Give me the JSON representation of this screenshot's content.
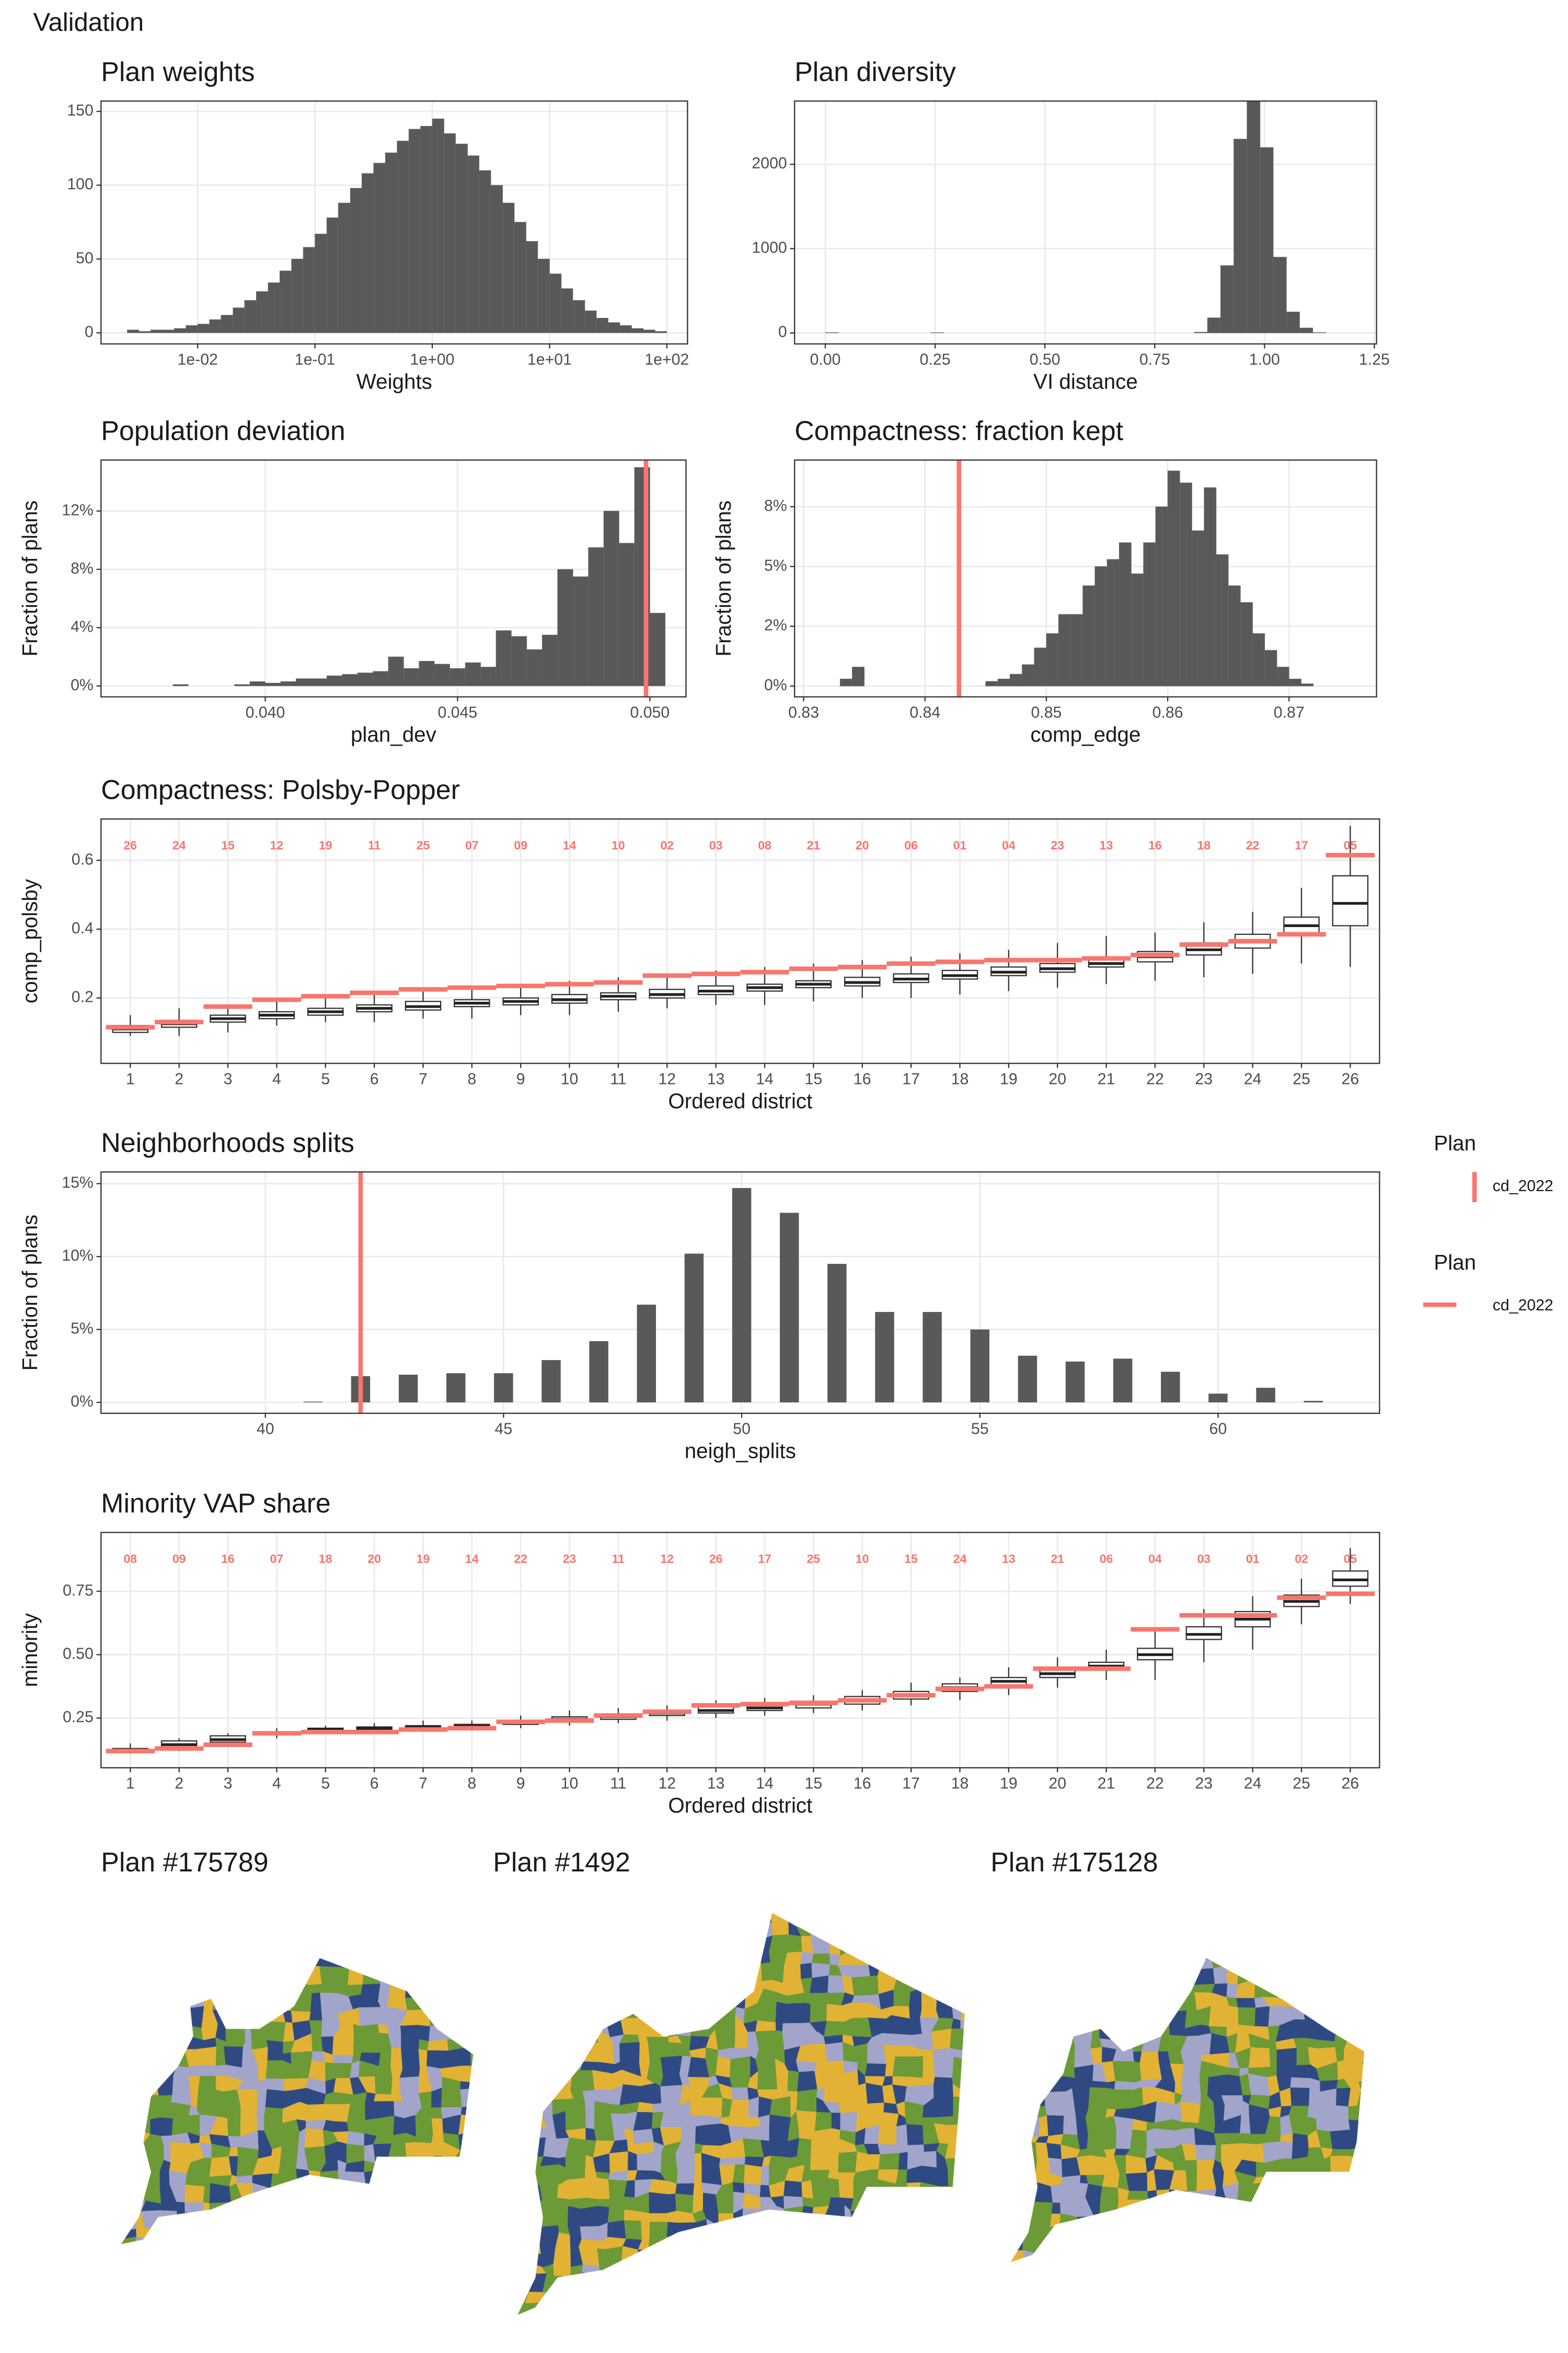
{
  "title": "Validation",
  "legends": [
    {
      "title": "Plan",
      "label": "cd_2022",
      "color": "#f8766d"
    },
    {
      "title": "Plan",
      "label": "cd_2022",
      "color": "#f8766d"
    }
  ],
  "maps": [
    {
      "title": "Plan #175789"
    },
    {
      "title": "Plan #1492"
    },
    {
      "title": "Plan #175128"
    }
  ],
  "chart_data": [
    {
      "type": "histogram",
      "title": "Plan weights",
      "xlabel": "Weights",
      "xscale": "log",
      "grid": true,
      "color": "#595959",
      "bins": [
        0.00251,
        0.00316,
        0.00398,
        0.00501,
        0.00631,
        0.00794,
        0.01,
        0.0126,
        0.0158,
        0.02,
        0.0251,
        0.0316,
        0.0398,
        0.0501,
        0.0631,
        0.0794,
        0.1,
        0.126,
        0.158,
        0.2,
        0.251,
        0.316,
        0.398,
        0.501,
        0.631,
        0.794,
        1,
        1.26,
        1.58,
        2,
        2.51,
        3.16,
        3.98,
        5.01,
        6.31,
        7.94,
        10,
        12.6,
        15.8,
        20,
        25.1,
        31.6,
        39.8,
        50.1,
        63.1,
        79.4,
        100
      ],
      "values": [
        2,
        1,
        2,
        2,
        3,
        5,
        6,
        9,
        12,
        17,
        22,
        28,
        34,
        42,
        50,
        58,
        67,
        78,
        88,
        98,
        108,
        115,
        122,
        130,
        138,
        140,
        145,
        135,
        128,
        120,
        110,
        100,
        88,
        75,
        62,
        50,
        40,
        30,
        22,
        15,
        10,
        7,
        5,
        3,
        2,
        1
      ],
      "xlim": [
        0.0015,
        150
      ],
      "xticks": [
        {
          "value": 0.01,
          "label": "1e-02"
        },
        {
          "value": 0.1,
          "label": "1e-01"
        },
        {
          "value": 1,
          "label": "1e+00"
        },
        {
          "value": 10,
          "label": "1e+01"
        },
        {
          "value": 100,
          "label": "1e+02"
        }
      ],
      "ylim": [
        -7.5,
        157
      ],
      "yticks": [
        0,
        50,
        100,
        150
      ]
    },
    {
      "type": "histogram",
      "title": "Plan diversity",
      "xlabel": "VI distance",
      "grid": true,
      "color": "#595959",
      "bins": [
        0,
        0.03,
        0.06,
        0.09,
        0.12,
        0.15,
        0.18,
        0.21,
        0.24,
        0.27,
        0.3,
        0.33,
        0.36,
        0.39,
        0.42,
        0.45,
        0.48,
        0.51,
        0.54,
        0.57,
        0.6,
        0.63,
        0.66,
        0.69,
        0.72,
        0.75,
        0.78,
        0.81,
        0.84,
        0.87,
        0.9,
        0.93,
        0.96,
        0.99,
        1.02,
        1.05,
        1.08,
        1.11,
        1.14
      ],
      "values": [
        5,
        0,
        0,
        0,
        0,
        0,
        0,
        0,
        4,
        0,
        0,
        0,
        0,
        0,
        0,
        0,
        0,
        0,
        0,
        0,
        0,
        0,
        0,
        0,
        0,
        0,
        0,
        0,
        10,
        180,
        800,
        2300,
        2750,
        2200,
        900,
        250,
        60,
        5
      ],
      "xlim": [
        -0.07,
        1.255
      ],
      "xticks": [
        {
          "value": 0,
          "label": "0.00"
        },
        0.25,
        {
          "value": 0.5,
          "label": "0.50"
        },
        0.75,
        {
          "value": 1,
          "label": "1.00"
        },
        1.25
      ],
      "ylim": [
        -130,
        2750
      ],
      "yticks": [
        0,
        1000,
        2000
      ]
    },
    {
      "type": "histogram",
      "title": "Population deviation",
      "xlabel": "plan_dev",
      "ylabel": "Fraction of plans",
      "grid": true,
      "color": "#595959",
      "bins": [
        0.0376,
        0.038,
        0.0384,
        0.0388,
        0.0392,
        0.0396,
        0.04,
        0.0404,
        0.0408,
        0.0412,
        0.0416,
        0.042,
        0.0424,
        0.0428,
        0.0432,
        0.0436,
        0.044,
        0.0444,
        0.0448,
        0.0452,
        0.0456,
        0.046,
        0.0464,
        0.0468,
        0.0472,
        0.0476,
        0.048,
        0.0484,
        0.0488,
        0.0492,
        0.0496,
        0.05,
        0.0504
      ],
      "values": [
        0.1,
        0,
        0,
        0,
        0.1,
        0.3,
        0.2,
        0.3,
        0.5,
        0.5,
        0.7,
        0.8,
        0.9,
        1.0,
        2.0,
        1.2,
        1.7,
        1.5,
        1.2,
        1.6,
        1.3,
        3.8,
        3.4,
        2.5,
        3.5,
        8.0,
        7.5,
        9.5,
        12.0,
        9.8,
        15.0,
        5.0
      ],
      "ref": 0.0499,
      "ref_color": "#f8766d",
      "xlim": [
        0.03573,
        0.05094
      ],
      "xticks": [
        {
          "value": 0.04,
          "label": "0.040"
        },
        {
          "value": 0.045,
          "label": "0.045"
        },
        {
          "value": 0.05,
          "label": "0.050"
        }
      ],
      "ylim": [
        -0.75,
        15.5
      ],
      "yticks": [
        {
          "value": 0,
          "label": "0%"
        },
        {
          "value": 4,
          "label": "4%"
        },
        {
          "value": 8,
          "label": "8%"
        },
        {
          "value": 12,
          "label": "12%"
        }
      ]
    },
    {
      "type": "histogram",
      "title": "Compactness: fraction kept",
      "xlabel": "comp_edge",
      "ylabel": "Fraction of plans",
      "grid": true,
      "color": "#595959",
      "bins": [
        0.833,
        0.834,
        0.835,
        0.836,
        0.837,
        0.838,
        0.839,
        0.84,
        0.841,
        0.842,
        0.843,
        0.844,
        0.845,
        0.846,
        0.847,
        0.848,
        0.849,
        0.85,
        0.851,
        0.852,
        0.853,
        0.854,
        0.855,
        0.856,
        0.857,
        0.858,
        0.859,
        0.86,
        0.861,
        0.862,
        0.863,
        0.864,
        0.865,
        0.866,
        0.867,
        0.868,
        0.869,
        0.87,
        0.871,
        0.872
      ],
      "values": [
        0.3,
        0.8,
        0,
        0,
        0,
        0,
        0,
        0,
        0,
        0,
        0,
        0,
        0.2,
        0.3,
        0.5,
        0.9,
        1.6,
        2.2,
        3.0,
        3.0,
        4.2,
        5.0,
        5.3,
        6.0,
        4.7,
        6.0,
        7.5,
        9.0,
        8.5,
        6.5,
        8.3,
        5.5,
        4.2,
        3.5,
        2.2,
        1.5,
        0.8,
        0.3,
        0.1
      ],
      "ref": 0.8428,
      "ref_color": "#f8766d",
      "xlim": [
        0.82925,
        0.87721
      ],
      "xticks": [
        0.83,
        0.84,
        0.85,
        0.86,
        0.87
      ],
      "ylim": [
        -0.45,
        9.45
      ],
      "yticks": [
        {
          "value": 0,
          "label": "0%"
        },
        {
          "value": 2.5,
          "label": "2%"
        },
        {
          "value": 5,
          "label": "5%"
        },
        {
          "value": 7.5,
          "label": "8%"
        }
      ]
    },
    {
      "type": "box",
      "title": "Compactness: Polsby-Popper",
      "xlabel": "Ordered district",
      "ylabel": "comp_polsby",
      "grid": true,
      "categories": [
        "1",
        "2",
        "3",
        "4",
        "5",
        "6",
        "7",
        "8",
        "9",
        "10",
        "11",
        "12",
        "13",
        "14",
        "15",
        "16",
        "17",
        "18",
        "19",
        "20",
        "21",
        "22",
        "23",
        "24",
        "25",
        "26"
      ],
      "boxes": [
        [
          0.09,
          0.1,
          0.11,
          0.12,
          0.15
        ],
        [
          0.09,
          0.115,
          0.125,
          0.135,
          0.17
        ],
        [
          0.1,
          0.13,
          0.14,
          0.15,
          0.18
        ],
        [
          0.12,
          0.14,
          0.15,
          0.16,
          0.19
        ],
        [
          0.13,
          0.15,
          0.16,
          0.17,
          0.2
        ],
        [
          0.13,
          0.16,
          0.17,
          0.18,
          0.21
        ],
        [
          0.14,
          0.165,
          0.175,
          0.19,
          0.22
        ],
        [
          0.14,
          0.175,
          0.185,
          0.195,
          0.23
        ],
        [
          0.15,
          0.18,
          0.19,
          0.2,
          0.24
        ],
        [
          0.15,
          0.185,
          0.195,
          0.21,
          0.25
        ],
        [
          0.16,
          0.195,
          0.205,
          0.215,
          0.26
        ],
        [
          0.17,
          0.2,
          0.21,
          0.225,
          0.27
        ],
        [
          0.18,
          0.21,
          0.22,
          0.235,
          0.28
        ],
        [
          0.18,
          0.22,
          0.23,
          0.24,
          0.29
        ],
        [
          0.19,
          0.23,
          0.24,
          0.25,
          0.3
        ],
        [
          0.2,
          0.235,
          0.245,
          0.26,
          0.31
        ],
        [
          0.2,
          0.245,
          0.255,
          0.27,
          0.32
        ],
        [
          0.21,
          0.255,
          0.265,
          0.28,
          0.33
        ],
        [
          0.22,
          0.265,
          0.275,
          0.29,
          0.34
        ],
        [
          0.23,
          0.275,
          0.285,
          0.3,
          0.36
        ],
        [
          0.24,
          0.29,
          0.3,
          0.315,
          0.38
        ],
        [
          0.25,
          0.305,
          0.32,
          0.335,
          0.39
        ],
        [
          0.26,
          0.325,
          0.34,
          0.36,
          0.42
        ],
        [
          0.27,
          0.345,
          0.365,
          0.385,
          0.45
        ],
        [
          0.3,
          0.385,
          0.41,
          0.435,
          0.52
        ],
        [
          0.29,
          0.41,
          0.475,
          0.555,
          0.7
        ]
      ],
      "plan_values": [
        0.115,
        0.13,
        0.175,
        0.195,
        0.205,
        0.215,
        0.225,
        0.23,
        0.235,
        0.24,
        0.245,
        0.265,
        0.27,
        0.275,
        0.285,
        0.29,
        0.3,
        0.305,
        0.31,
        0.31,
        0.315,
        0.325,
        0.355,
        0.365,
        0.385,
        0.615
      ],
      "plan_color": "#f8766d",
      "district_labels": [
        "26",
        "24",
        "15",
        "12",
        "19",
        "11",
        "25",
        "07",
        "09",
        "14",
        "10",
        "02",
        "03",
        "08",
        "21",
        "20",
        "06",
        "01",
        "04",
        "23",
        "13",
        "16",
        "18",
        "22",
        "17",
        "05"
      ],
      "ylim": [
        0.01,
        0.72
      ],
      "yticks": [
        0.2,
        0.4,
        0.6
      ]
    },
    {
      "type": "bar",
      "title": "Neighborhoods splits",
      "xlabel": "neigh_splits",
      "ylabel": "Fraction of plans",
      "grid": true,
      "color": "#595959",
      "x": [
        41,
        42,
        43,
        44,
        45,
        46,
        47,
        48,
        49,
        50,
        51,
        52,
        53,
        54,
        55,
        56,
        57,
        58,
        59,
        60,
        61,
        62
      ],
      "values": [
        0.05,
        1.8,
        1.9,
        2.0,
        2.0,
        2.9,
        4.2,
        6.7,
        10.2,
        14.7,
        13.0,
        9.5,
        6.2,
        6.2,
        5.0,
        3.2,
        2.8,
        3.0,
        2.1,
        0.6,
        1.0,
        0.1
      ],
      "ref": 42,
      "ref_color": "#f8766d",
      "xlim": [
        36.55,
        63.39
      ],
      "xticks": [
        40,
        45,
        50,
        55,
        60
      ],
      "ylim": [
        -0.75,
        15.8
      ],
      "yticks": [
        {
          "value": 0,
          "label": "0%"
        },
        {
          "value": 5,
          "label": "5%"
        },
        {
          "value": 10,
          "label": "10%"
        },
        {
          "value": 15,
          "label": "15%"
        }
      ]
    },
    {
      "type": "box",
      "title": "Minority VAP share",
      "xlabel": "Ordered district",
      "ylabel": "minority",
      "grid": true,
      "categories": [
        "1",
        "2",
        "3",
        "4",
        "5",
        "6",
        "7",
        "8",
        "9",
        "10",
        "11",
        "12",
        "13",
        "14",
        "15",
        "16",
        "17",
        "18",
        "19",
        "20",
        "21",
        "22",
        "23",
        "24",
        "25",
        "26"
      ],
      "boxes": [
        [
          0.11,
          0.115,
          0.12,
          0.13,
          0.15
        ],
        [
          0.12,
          0.135,
          0.145,
          0.16,
          0.17
        ],
        [
          0.14,
          0.155,
          0.165,
          0.18,
          0.19
        ],
        [
          0.17,
          0.185,
          0.19,
          0.195,
          0.21
        ],
        [
          0.19,
          0.2,
          0.205,
          0.21,
          0.22
        ],
        [
          0.19,
          0.205,
          0.21,
          0.215,
          0.23
        ],
        [
          0.2,
          0.21,
          0.215,
          0.22,
          0.24
        ],
        [
          0.2,
          0.215,
          0.22,
          0.225,
          0.24
        ],
        [
          0.21,
          0.225,
          0.23,
          0.24,
          0.26
        ],
        [
          0.22,
          0.24,
          0.245,
          0.255,
          0.28
        ],
        [
          0.23,
          0.245,
          0.255,
          0.265,
          0.29
        ],
        [
          0.24,
          0.26,
          0.27,
          0.28,
          0.3
        ],
        [
          0.25,
          0.27,
          0.28,
          0.295,
          0.32
        ],
        [
          0.26,
          0.28,
          0.29,
          0.3,
          0.33
        ],
        [
          0.27,
          0.29,
          0.305,
          0.315,
          0.34
        ],
        [
          0.28,
          0.305,
          0.32,
          0.335,
          0.36
        ],
        [
          0.3,
          0.325,
          0.34,
          0.355,
          0.39
        ],
        [
          0.32,
          0.355,
          0.37,
          0.385,
          0.41
        ],
        [
          0.34,
          0.38,
          0.395,
          0.41,
          0.45
        ],
        [
          0.37,
          0.41,
          0.425,
          0.44,
          0.49
        ],
        [
          0.4,
          0.44,
          0.455,
          0.47,
          0.52
        ],
        [
          0.4,
          0.48,
          0.5,
          0.525,
          0.6
        ],
        [
          0.47,
          0.56,
          0.58,
          0.61,
          0.68
        ],
        [
          0.52,
          0.61,
          0.64,
          0.67,
          0.73
        ],
        [
          0.62,
          0.69,
          0.71,
          0.735,
          0.8
        ],
        [
          0.7,
          0.77,
          0.795,
          0.83,
          0.92
        ]
      ],
      "plan_values": [
        0.12,
        0.13,
        0.145,
        0.19,
        0.195,
        0.195,
        0.205,
        0.21,
        0.235,
        0.24,
        0.26,
        0.275,
        0.3,
        0.305,
        0.31,
        0.32,
        0.34,
        0.365,
        0.375,
        0.445,
        0.445,
        0.6,
        0.655,
        0.655,
        0.725,
        0.74
      ],
      "plan_color": "#f8766d",
      "district_labels": [
        "08",
        "09",
        "16",
        "07",
        "18",
        "20",
        "19",
        "14",
        "22",
        "23",
        "11",
        "12",
        "26",
        "17",
        "25",
        "10",
        "15",
        "24",
        "13",
        "21",
        "06",
        "04",
        "03",
        "01",
        "02",
        "05"
      ],
      "ylim": [
        0.054,
        0.982
      ],
      "yticks": [
        0.25,
        {
          "value": 0.5,
          "label": "0.50"
        },
        0.75
      ]
    }
  ]
}
